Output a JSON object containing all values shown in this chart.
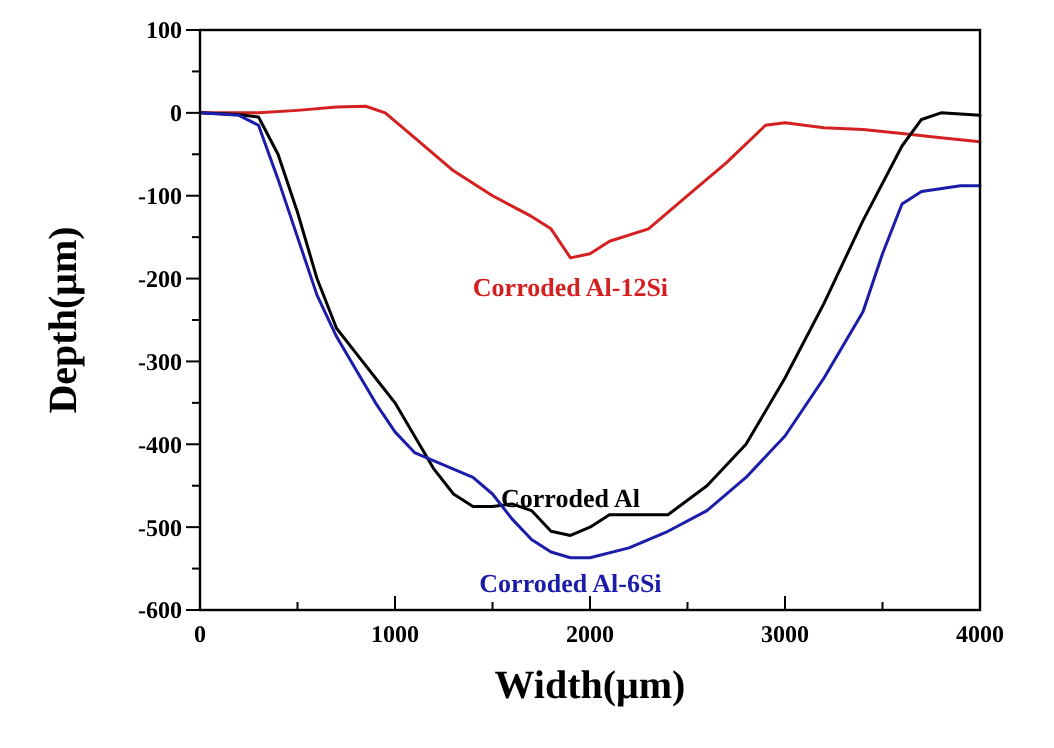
{
  "chart_data": {
    "type": "line",
    "xlabel": "Width(μm)",
    "ylabel": "Depth(μm)",
    "xlim": [
      0,
      4000
    ],
    "ylim": [
      -600,
      100
    ],
    "xticks": [
      0,
      {
        "value": 500,
        "label": null
      },
      1000,
      {
        "value": 1500,
        "label": null
      },
      2000,
      {
        "value": 2500,
        "label": null
      },
      3000,
      {
        "value": 3500,
        "label": null
      },
      4000
    ],
    "yticks": [
      100,
      {
        "value": 50,
        "label": null
      },
      0,
      {
        "value": -50,
        "label": null
      },
      -100,
      {
        "value": -150,
        "label": null
      },
      -200,
      {
        "value": -250,
        "label": null
      },
      -300,
      {
        "value": -350,
        "label": null
      },
      -400,
      {
        "value": -450,
        "label": null
      },
      -500,
      {
        "value": -550,
        "label": null
      },
      -600
    ],
    "grid": false,
    "marker": "none",
    "line_style": "solid",
    "series": [
      {
        "name": "Corroded Al-12Si",
        "color": "#d42020",
        "x": [
          0,
          300,
          500,
          700,
          850,
          950,
          1100,
          1300,
          1500,
          1700,
          1800,
          1900,
          2000,
          2100,
          2300,
          2500,
          2700,
          2900,
          3000,
          3200,
          3400,
          3600,
          3800,
          4000
        ],
        "values": [
          0,
          0,
          3,
          7,
          8,
          0,
          -30,
          -70,
          -100,
          -125,
          -140,
          -175,
          -170,
          -155,
          -140,
          -100,
          -60,
          -15,
          -12,
          -18,
          -20,
          -25,
          -30,
          -35
        ]
      },
      {
        "name": "Corroded Al",
        "color": "#000000",
        "x": [
          0,
          200,
          300,
          400,
          500,
          600,
          700,
          800,
          900,
          1000,
          1100,
          1200,
          1300,
          1400,
          1500,
          1600,
          1700,
          1800,
          1900,
          2000,
          2100,
          2200,
          2400,
          2600,
          2800,
          3000,
          3200,
          3400,
          3600,
          3700,
          3800,
          4000
        ],
        "values": [
          0,
          -2,
          -5,
          -50,
          -120,
          -200,
          -260,
          -290,
          -320,
          -350,
          -390,
          -430,
          -460,
          -475,
          -475,
          -472,
          -480,
          -505,
          -510,
          -500,
          -485,
          -485,
          -485,
          -450,
          -400,
          -320,
          -230,
          -130,
          -40,
          -8,
          0,
          -3
        ]
      },
      {
        "name": "Corroded Al-6Si",
        "color": "#1c1caa",
        "x": [
          0,
          200,
          300,
          400,
          500,
          600,
          700,
          800,
          900,
          1000,
          1100,
          1200,
          1300,
          1400,
          1500,
          1600,
          1700,
          1800,
          1900,
          2000,
          2200,
          2400,
          2600,
          2800,
          3000,
          3200,
          3400,
          3500,
          3600,
          3700,
          3900,
          4000
        ],
        "values": [
          0,
          -3,
          -15,
          -80,
          -150,
          -220,
          -270,
          -310,
          -350,
          -385,
          -410,
          -420,
          -430,
          -440,
          -460,
          -490,
          -515,
          -530,
          -537,
          -537,
          -525,
          -505,
          -480,
          -440,
          -390,
          -320,
          -240,
          -170,
          -110,
          -95,
          -88,
          -88
        ]
      }
    ]
  }
}
